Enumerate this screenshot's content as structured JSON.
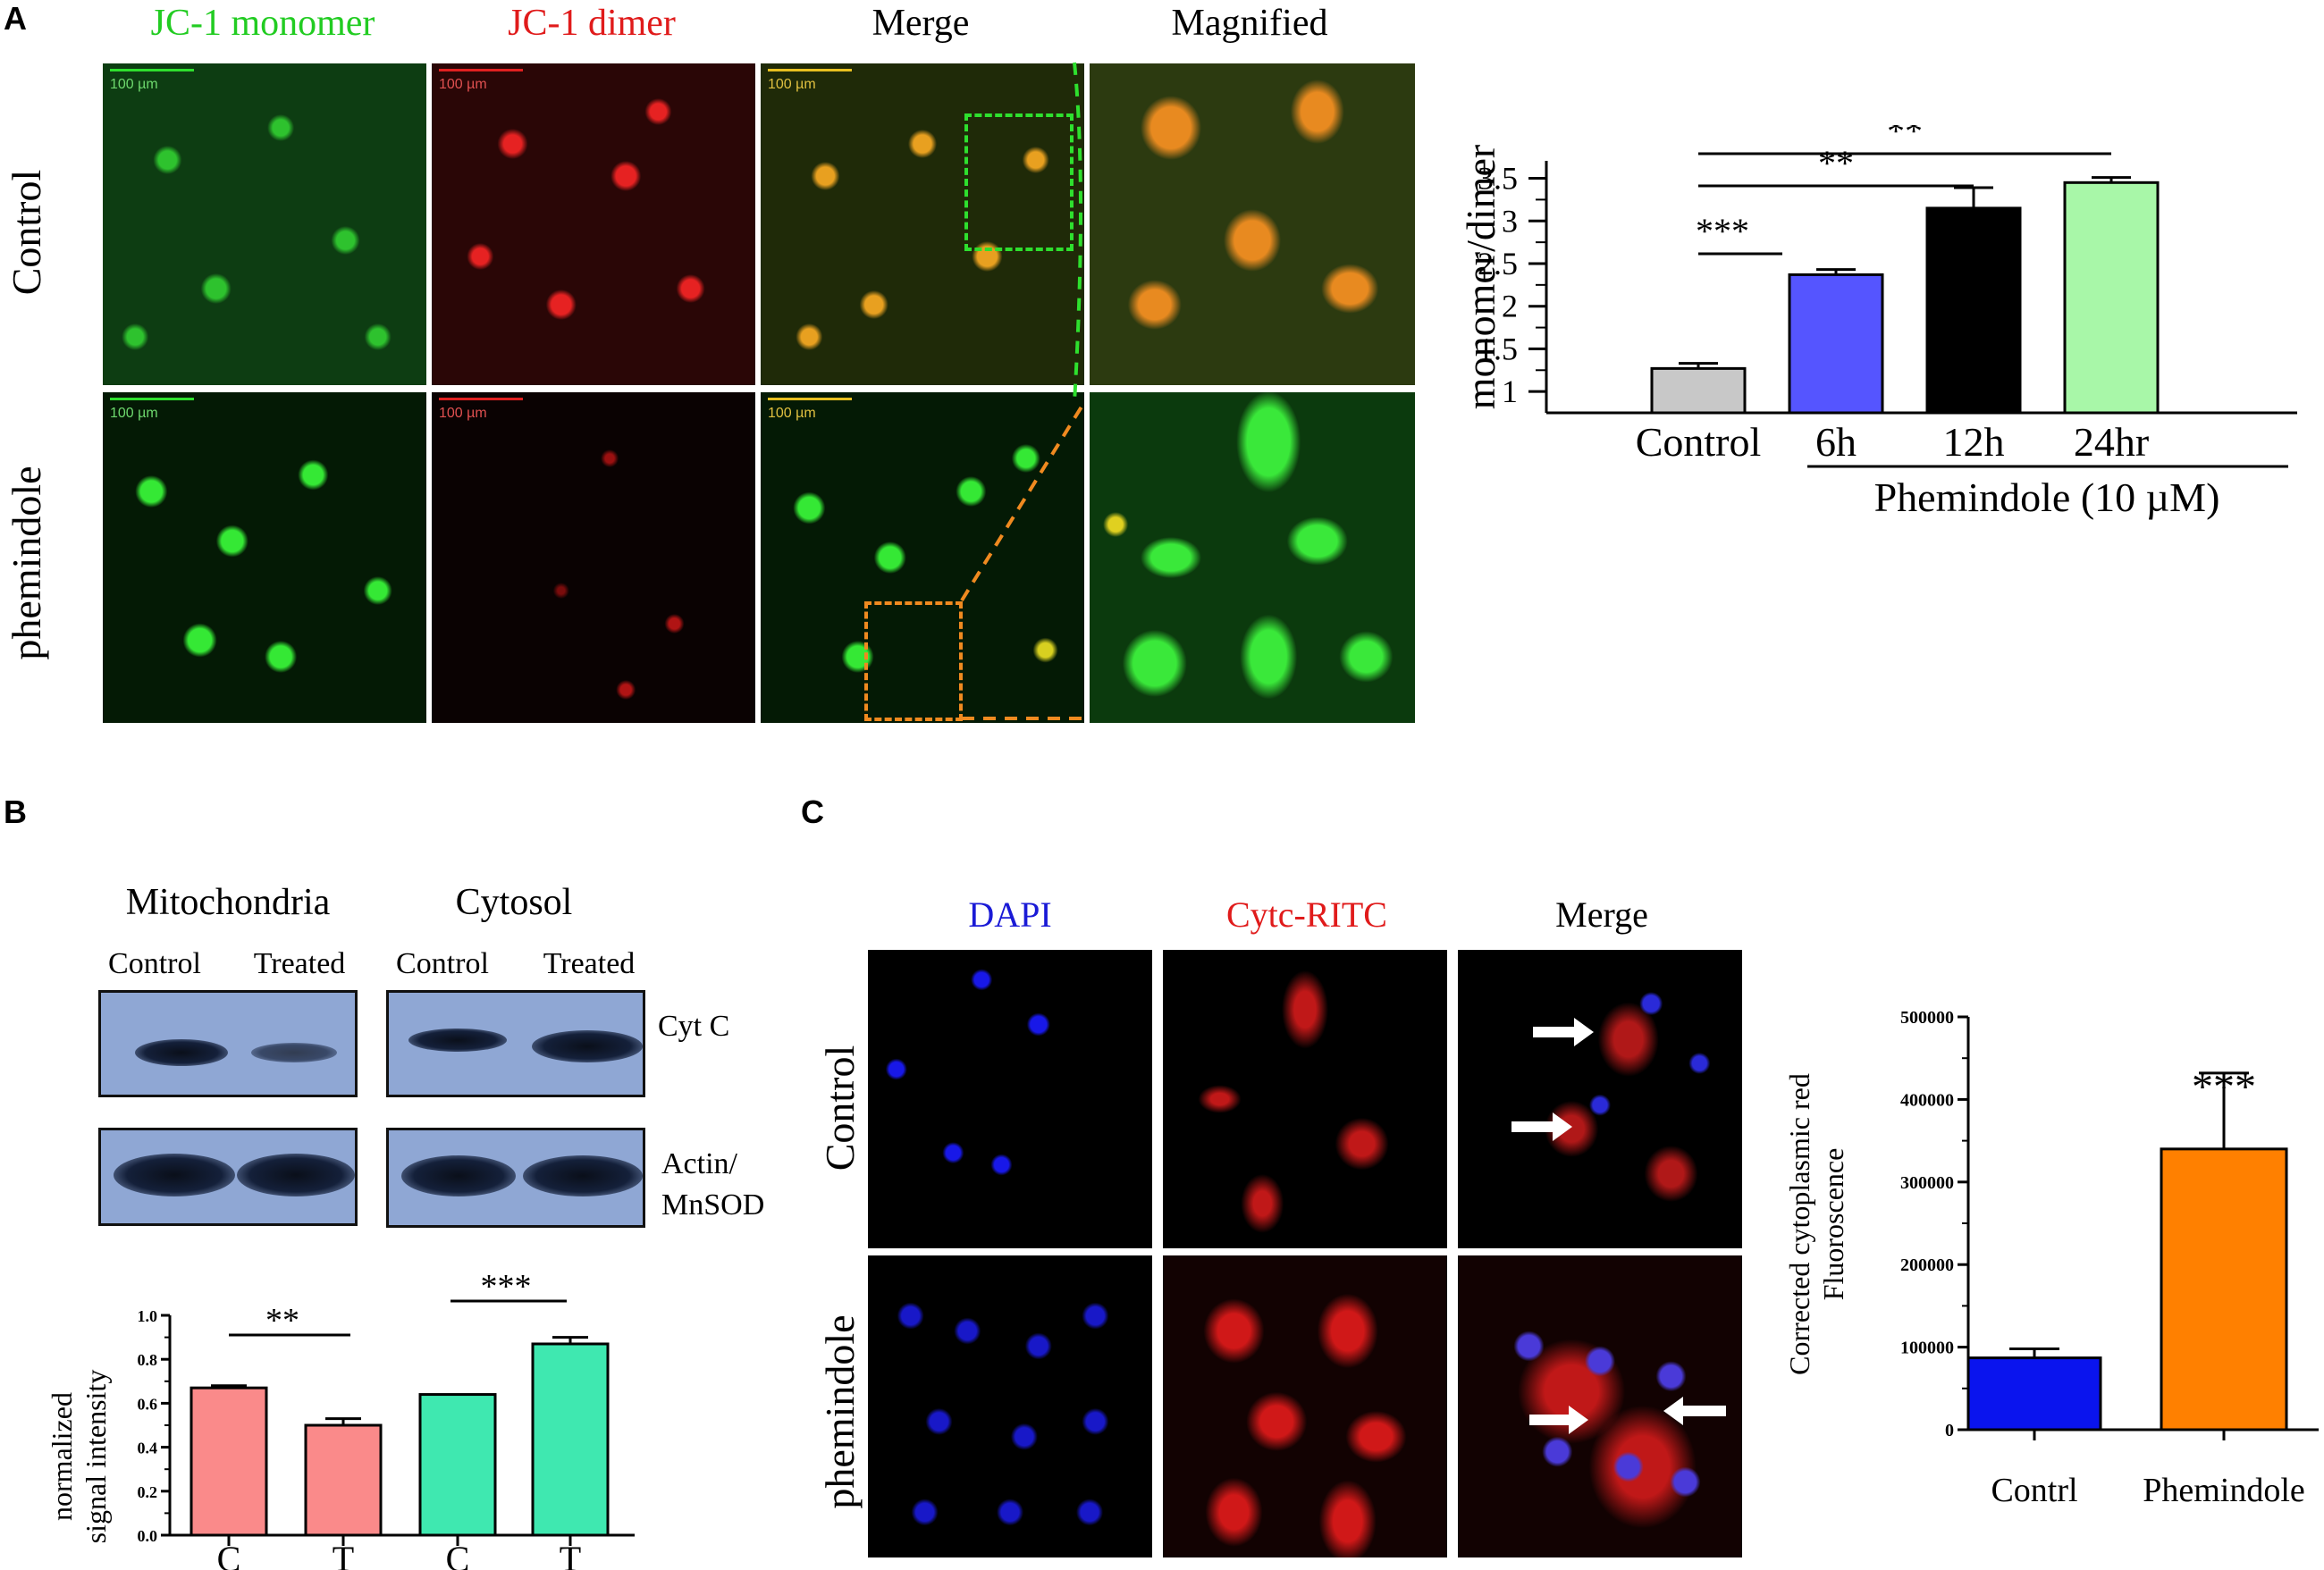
{
  "panelA": {
    "letter": "A",
    "columns": [
      "JC-1 monomer",
      "JC-1 dimer",
      "Merge",
      "Magnified"
    ],
    "column_colors": [
      "#22cc22",
      "#e01b1b",
      "#000000",
      "#000000"
    ],
    "rows": [
      "Control",
      "phemindole"
    ],
    "scale_label": "100 µm"
  },
  "panelB": {
    "letter": "B",
    "headers": [
      "Mitochondria",
      "Cytosol"
    ],
    "lanes": [
      "Control",
      "Treated",
      "Control",
      "Treated"
    ],
    "blot_labels": {
      "cytc": "Cyt C",
      "actin": "Actin/",
      "mnsod": "MnSOD"
    }
  },
  "panelC": {
    "letter": "C",
    "columns": [
      "DAPI",
      "Cytc-RITC",
      "Merge"
    ],
    "column_colors": [
      "#1a1ad6",
      "#e01b1b",
      "#000000"
    ],
    "rows": [
      "Control",
      "phemindole"
    ]
  },
  "chart_data": [
    {
      "type": "bar",
      "id": "A",
      "categories": [
        "Control",
        "6h",
        "12h",
        "24hr"
      ],
      "values": [
        1.27,
        2.37,
        3.15,
        3.45
      ],
      "errors": [
        0.06,
        0.06,
        0.24,
        0.06
      ],
      "colors": [
        "#c8c8c8",
        "#5555ff",
        "#000000",
        "#a8f7a8"
      ],
      "ylabel": "monomer/dimer",
      "yticks": [
        "1",
        "1.5",
        "2",
        "2.5",
        "3",
        "3.5"
      ],
      "ylim": [
        0.75,
        3.6
      ],
      "group_label": "Phemindole (10 µM)",
      "significance": [
        {
          "from": 0,
          "to": 1,
          "label": "***"
        },
        {
          "from": 0,
          "to": 2,
          "label": "**"
        },
        {
          "from": 0,
          "to": 3,
          "label": "**"
        }
      ]
    },
    {
      "type": "bar",
      "id": "B",
      "categories": [
        "C",
        "T",
        "C",
        "T"
      ],
      "groups": [
        "mito",
        "cyto"
      ],
      "values": [
        0.67,
        0.5,
        0.64,
        0.87
      ],
      "errors": [
        0.01,
        0.03,
        0.0,
        0.03
      ],
      "colors": [
        "#fa8a8a",
        "#fa8a8a",
        "#3fe8b0",
        "#3fe8b0"
      ],
      "ylabel": [
        "normalized",
        "signal intensity"
      ],
      "yticks": [
        "0.0",
        "0.2",
        "0.4",
        "0.6",
        "0.8",
        "1.0"
      ],
      "ylim": [
        0,
        1.0
      ],
      "significance": [
        {
          "from": 0,
          "to": 1,
          "label": "**"
        },
        {
          "from": 2,
          "to": 3,
          "label": "***"
        }
      ]
    },
    {
      "type": "bar",
      "id": "C",
      "categories": [
        "Contrl",
        "Phemindole"
      ],
      "values": [
        87000,
        340000
      ],
      "errors": [
        11000,
        92000
      ],
      "colors": [
        "#0a14ee",
        "#ff8000"
      ],
      "ylabel": [
        "Corrected cytoplasmic red",
        "Fluoroscence"
      ],
      "yticks": [
        "0",
        "100000",
        "200000",
        "300000",
        "400000",
        "500000"
      ],
      "ylim": [
        0,
        500000
      ],
      "annotation": "***"
    }
  ]
}
